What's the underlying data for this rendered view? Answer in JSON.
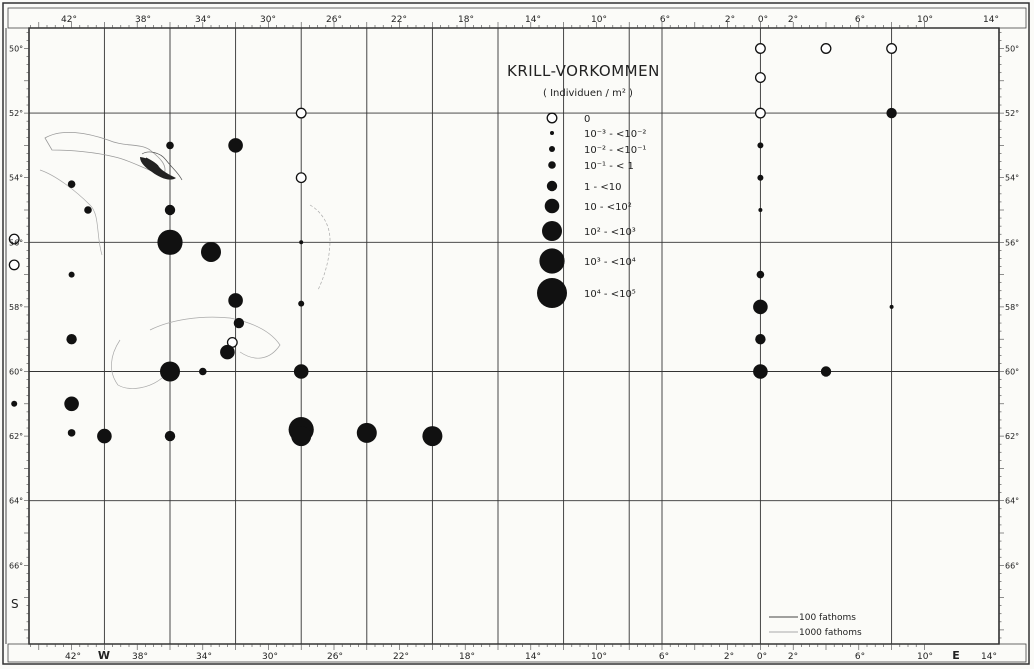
{
  "map": {
    "title": "KRILL-VORKOMMEN",
    "subtitle": "( Individuen / m² )",
    "legend": [
      {
        "label": "0",
        "class": "empty"
      },
      {
        "label": "10⁻³ - <10⁻²",
        "class": "d1"
      },
      {
        "label": "10⁻² - <10⁻¹",
        "class": "d2"
      },
      {
        "label": "10⁻¹ - < 1",
        "class": "d3"
      },
      {
        "label": "1 - <10",
        "class": "d4"
      },
      {
        "label": "10 - <10²",
        "class": "d5"
      },
      {
        "label": "10² - <10³",
        "class": "d6"
      },
      {
        "label": "10³ - <10⁴",
        "class": "d7"
      },
      {
        "label": "10⁴ - <10⁵",
        "class": "d8"
      }
    ],
    "top_lon_labels": [
      "42°",
      "38°",
      "34°",
      "30°",
      "26°",
      "22°",
      "18°",
      "14°",
      "10°",
      "6°",
      "2°",
      "0°",
      "2°",
      "6°",
      "10°",
      "14°"
    ],
    "bottom_lon_labels": [
      "42°",
      "W",
      "38°",
      "34°",
      "30°",
      "26°",
      "22°",
      "18°",
      "14°",
      "10°",
      "6°",
      "2°",
      "0°",
      "2°",
      "6°",
      "10°",
      "E",
      "14°"
    ],
    "lat_labels": [
      "50°",
      "52°",
      "54°",
      "56°",
      "58°",
      "60°",
      "62°",
      "64°",
      "66°"
    ],
    "south_label": "S",
    "contour_legend": {
      "c100": "100  fathoms",
      "c1000": "1000 fathoms"
    },
    "stations": [
      {
        "lon": -43.5,
        "lat": 50.8,
        "class": "empty"
      },
      {
        "lon": -22,
        "lat": 52,
        "class": "empty"
      },
      {
        "lon": -22,
        "lat": 54,
        "class": "empty"
      },
      {
        "lon": -43.5,
        "lat": 55,
        "class": "empty"
      },
      {
        "lon": -39.5,
        "lat": 55.9,
        "class": "empty"
      },
      {
        "lon": -39.5,
        "lat": 56.7,
        "class": "empty"
      },
      {
        "lon": -26.2,
        "lat": 59.1,
        "class": "empty"
      },
      {
        "lon": 6,
        "lat": 50,
        "class": "empty"
      },
      {
        "lon": 10,
        "lat": 50,
        "class": "empty"
      },
      {
        "lon": 14,
        "lat": 50,
        "class": "empty"
      },
      {
        "lon": 6,
        "lat": 50.9,
        "class": "empty"
      },
      {
        "lon": 6,
        "lat": 52,
        "class": "empty"
      },
      {
        "lon": -43.5,
        "lat": 53,
        "class": "d1"
      },
      {
        "lon": -43.5,
        "lat": 53.5,
        "class": "d5"
      },
      {
        "lon": -43.5,
        "lat": 57,
        "class": "d3"
      },
      {
        "lon": -43.5,
        "lat": 59,
        "class": "d4"
      },
      {
        "lon": -43.5,
        "lat": 61,
        "class": "d1"
      },
      {
        "lon": -39.5,
        "lat": 61,
        "class": "d2"
      },
      {
        "lon": -36,
        "lat": 54.2,
        "class": "d3"
      },
      {
        "lon": -35,
        "lat": 55,
        "class": "d3"
      },
      {
        "lon": -36,
        "lat": 57,
        "class": "d2"
      },
      {
        "lon": -36,
        "lat": 59,
        "class": "d4"
      },
      {
        "lon": -36,
        "lat": 61,
        "class": "d5"
      },
      {
        "lon": -36,
        "lat": 61.9,
        "class": "d3"
      },
      {
        "lon": -34,
        "lat": 62,
        "class": "d5"
      },
      {
        "lon": -30,
        "lat": 53,
        "class": "d3"
      },
      {
        "lon": -30,
        "lat": 55,
        "class": "d4"
      },
      {
        "lon": -30,
        "lat": 56,
        "class": "d7"
      },
      {
        "lon": -30,
        "lat": 60,
        "class": "d6"
      },
      {
        "lon": -30,
        "lat": 62,
        "class": "d4"
      },
      {
        "lon": -26,
        "lat": 53,
        "class": "d5"
      },
      {
        "lon": -27.5,
        "lat": 56.3,
        "class": "d6"
      },
      {
        "lon": -26,
        "lat": 57.8,
        "class": "d5"
      },
      {
        "lon": -25.8,
        "lat": 58.5,
        "class": "d4"
      },
      {
        "lon": -26.5,
        "lat": 59.4,
        "class": "d5"
      },
      {
        "lon": -28,
        "lat": 60,
        "class": "d3"
      },
      {
        "lon": -22,
        "lat": 56,
        "class": "d1"
      },
      {
        "lon": -22,
        "lat": 57.9,
        "class": "d2"
      },
      {
        "lon": -22,
        "lat": 60,
        "class": "d5"
      },
      {
        "lon": -22,
        "lat": 61.8,
        "class": "d7"
      },
      {
        "lon": -22,
        "lat": 62,
        "class": "d6"
      },
      {
        "lon": -18,
        "lat": 61.9,
        "class": "d6"
      },
      {
        "lon": -14,
        "lat": 62,
        "class": "d6"
      },
      {
        "lon": 6,
        "lat": 53,
        "class": "d2"
      },
      {
        "lon": 6,
        "lat": 54,
        "class": "d2"
      },
      {
        "lon": 6,
        "lat": 55,
        "class": "d1"
      },
      {
        "lon": 6,
        "lat": 57,
        "class": "d3"
      },
      {
        "lon": 6,
        "lat": 58,
        "class": "d5"
      },
      {
        "lon": 6,
        "lat": 59,
        "class": "d4"
      },
      {
        "lon": 6,
        "lat": 60,
        "class": "d5"
      },
      {
        "lon": 10,
        "lat": 60,
        "class": "d4"
      },
      {
        "lon": 14,
        "lat": 52,
        "class": "d4"
      },
      {
        "lon": 14,
        "lat": 58,
        "class": "d1"
      }
    ]
  }
}
